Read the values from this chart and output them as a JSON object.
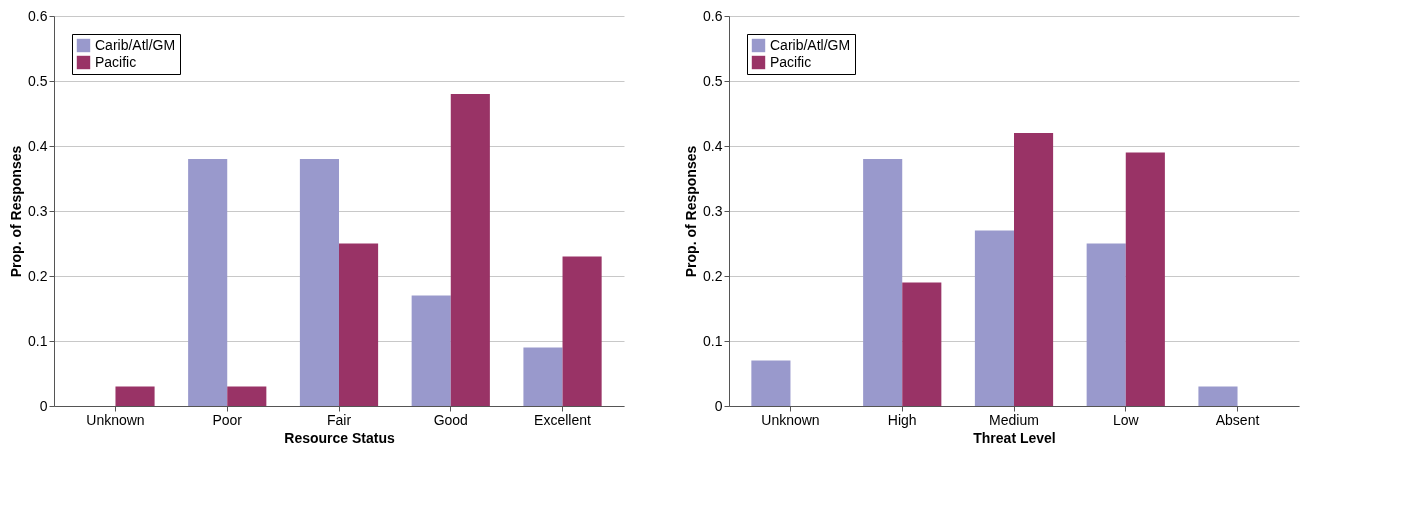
{
  "chart_data": [
    {
      "type": "bar",
      "xlabel": "Resource Status",
      "ylabel": "Prop. of Responses",
      "categories": [
        "Unknown",
        "Poor",
        "Fair",
        "Good",
        "Excellent"
      ],
      "series": [
        {
          "name": "Carib/Atl/GM",
          "color": "#9999cc",
          "values": [
            0,
            0.38,
            0.38,
            0.17,
            0.09
          ]
        },
        {
          "name": "Pacific",
          "color": "#993366",
          "values": [
            0.03,
            0.03,
            0.25,
            0.48,
            0.23
          ]
        }
      ],
      "ylim": [
        0,
        0.6
      ],
      "yticks": [
        0,
        0.1,
        0.2,
        0.3,
        0.4,
        0.5,
        0.6
      ],
      "grid": "y",
      "legend": "top left"
    },
    {
      "type": "bar",
      "xlabel": "Threat Level",
      "ylabel": "Prop. of Responses",
      "categories": [
        "Unknown",
        "High",
        "Medium",
        "Low",
        "Absent"
      ],
      "series": [
        {
          "name": "Carib/Atl/GM",
          "color": "#9999cc",
          "values": [
            0.07,
            0.38,
            0.27,
            0.25,
            0.03
          ]
        },
        {
          "name": "Pacific",
          "color": "#993366",
          "values": [
            0,
            0.19,
            0.42,
            0.39,
            0
          ]
        }
      ],
      "ylim": [
        0,
        0.6
      ],
      "yticks": [
        0,
        0.1,
        0.2,
        0.3,
        0.4,
        0.5,
        0.6
      ],
      "grid": "y",
      "legend": "top left"
    }
  ]
}
